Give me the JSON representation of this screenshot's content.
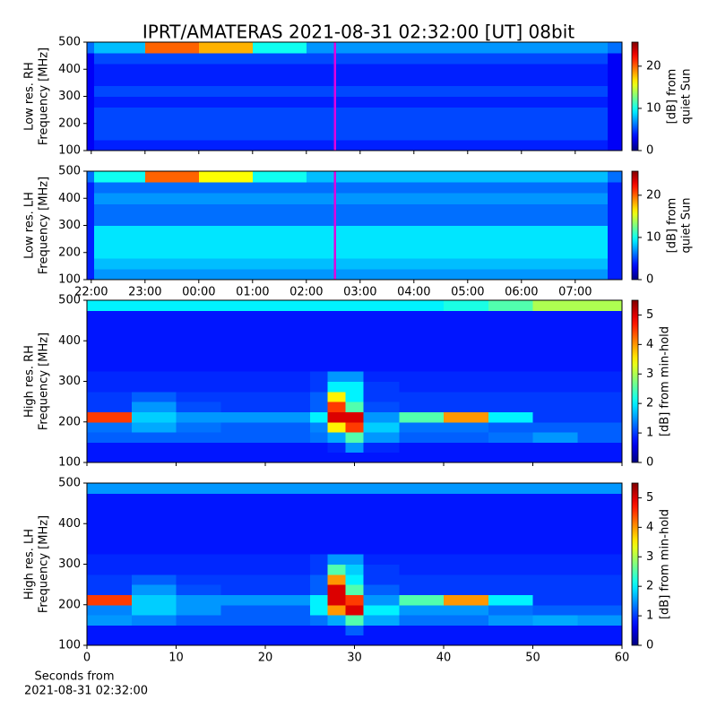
{
  "title": "IPRT/AMATERAS 2021-08-31 02:32:00 [UT]   08bit",
  "chart_data": [
    {
      "type": "heatmap",
      "colormap": "jet",
      "ylabel": [
        "Low res. RH",
        "Frequency [MHz]"
      ],
      "ylim": [
        100,
        500
      ],
      "yticks": [
        100,
        200,
        300,
        400,
        500
      ],
      "xlim": [
        21.92,
        31.87
      ],
      "xticks": [
        22,
        23,
        24,
        25,
        26,
        27,
        28,
        29,
        30,
        31
      ],
      "xtick_labels": false,
      "marker_x": 26.533,
      "marker_color": "#e000e0",
      "colorbar": {
        "label": [
          "[dB] from",
          "quiet Sun"
        ],
        "lim": [
          0,
          25.7
        ],
        "ticks": [
          0,
          10,
          20
        ]
      },
      "x_edges": [
        21.92,
        22.05,
        23,
        24,
        25,
        26,
        27,
        28,
        29,
        30,
        31.6,
        31.87
      ],
      "y_edges": [
        100,
        140,
        180,
        220,
        260,
        300,
        340,
        380,
        420,
        460,
        500
      ],
      "z": [
        [
          3,
          4,
          4,
          4,
          4,
          4,
          4,
          4,
          4,
          4,
          3
        ],
        [
          3,
          5,
          5,
          5,
          5,
          5,
          5,
          5,
          5,
          5,
          3
        ],
        [
          3,
          5,
          5,
          5,
          5,
          5,
          5,
          5,
          5,
          5,
          3
        ],
        [
          3,
          5,
          5,
          5,
          5,
          5,
          5,
          5,
          5,
          5,
          3
        ],
        [
          3,
          4,
          4,
          4,
          4,
          4,
          4,
          4,
          4,
          4,
          3
        ],
        [
          3,
          5,
          5,
          5,
          5,
          5,
          5,
          5,
          5,
          5,
          3
        ],
        [
          3,
          4,
          4,
          4,
          4,
          4,
          4,
          4,
          4,
          4,
          3
        ],
        [
          3,
          4,
          4,
          4,
          4,
          4,
          4,
          4,
          4,
          4,
          3
        ],
        [
          3,
          5,
          5,
          5,
          5,
          5,
          5,
          5,
          5,
          5,
          3
        ],
        [
          6,
          8,
          20,
          18,
          10,
          7,
          7,
          7,
          7,
          7,
          6
        ]
      ]
    },
    {
      "type": "heatmap",
      "colormap": "jet",
      "ylabel": [
        "Low res. LH",
        "Frequency [MHz]"
      ],
      "ylim": [
        100,
        500
      ],
      "yticks": [
        100,
        200,
        300,
        400,
        500
      ],
      "xlim": [
        21.92,
        31.87
      ],
      "xticks": [
        {
          "value": 22,
          "label": "22:00"
        },
        {
          "value": 23,
          "label": "23:00"
        },
        {
          "value": 24,
          "label": "00:00"
        },
        {
          "value": 25,
          "label": "01:00"
        },
        {
          "value": 26,
          "label": "02:00"
        },
        {
          "value": 27,
          "label": "03:00"
        },
        {
          "value": 28,
          "label": "04:00"
        },
        {
          "value": 29,
          "label": "05:00"
        },
        {
          "value": 30,
          "label": "06:00"
        },
        {
          "value": 31,
          "label": "07:00"
        }
      ],
      "xtick_labels": true,
      "marker_x": 26.533,
      "marker_color": "#e000e0",
      "colorbar": {
        "label": [
          "[dB] from",
          "quiet Sun"
        ],
        "lim": [
          0,
          25.7
        ],
        "ticks": [
          0,
          10,
          20
        ]
      },
      "x_edges": [
        21.92,
        22.05,
        23,
        24,
        25,
        26,
        27,
        28,
        29,
        30,
        31.6,
        31.87
      ],
      "y_edges": [
        100,
        140,
        180,
        220,
        260,
        300,
        340,
        380,
        420,
        460,
        500
      ],
      "z": [
        [
          4,
          7,
          7,
          7,
          7,
          7,
          7,
          7,
          7,
          7,
          4
        ],
        [
          4,
          8,
          8,
          8,
          8,
          8,
          8,
          8,
          8,
          8,
          4
        ],
        [
          4,
          9,
          9,
          9,
          9,
          9,
          9,
          9,
          9,
          9,
          4
        ],
        [
          4,
          9,
          9,
          9,
          9,
          9,
          9,
          9,
          9,
          9,
          4
        ],
        [
          4,
          9,
          9,
          9,
          9,
          9,
          9,
          9,
          9,
          9,
          4
        ],
        [
          4,
          6,
          6,
          6,
          6,
          6,
          6,
          6,
          6,
          6,
          4
        ],
        [
          4,
          6,
          6,
          6,
          6,
          6,
          6,
          6,
          6,
          6,
          4
        ],
        [
          4,
          7,
          7,
          7,
          7,
          7,
          7,
          7,
          7,
          7,
          4
        ],
        [
          4,
          6,
          6,
          6,
          6,
          6,
          6,
          6,
          6,
          6,
          4
        ],
        [
          6,
          10,
          20,
          16,
          10,
          8,
          8,
          8,
          8,
          8,
          6
        ]
      ]
    },
    {
      "type": "heatmap",
      "colormap": "jet",
      "ylabel": [
        "High res. RH",
        "Frequency [MHz]"
      ],
      "ylim": [
        100,
        500
      ],
      "yticks": [
        100,
        200,
        300,
        400,
        500
      ],
      "xlim": [
        0,
        60
      ],
      "xticks": [
        0,
        10,
        20,
        30,
        40,
        50,
        60
      ],
      "xtick_labels": false,
      "colorbar": {
        "label": [
          "[dB] from min-hold"
        ],
        "lim": [
          0,
          5.5
        ],
        "ticks": [
          0,
          1,
          2,
          3,
          4,
          5
        ]
      },
      "x_edges": [
        0,
        5,
        10,
        15,
        20,
        25,
        27,
        29,
        31,
        35,
        40,
        45,
        50,
        55,
        60
      ],
      "y_edges": [
        100,
        125,
        150,
        175,
        200,
        225,
        250,
        275,
        300,
        325,
        350,
        375,
        400,
        425,
        450,
        475,
        500
      ],
      "z": [
        [
          0.8,
          0.8,
          0.8,
          0.8,
          0.8,
          0.8,
          0.8,
          0.8,
          0.8,
          0.8,
          0.8,
          0.8,
          0.8,
          0.8
        ],
        [
          0.8,
          0.8,
          0.8,
          0.8,
          0.8,
          0.8,
          0.9,
          1.5,
          0.9,
          0.8,
          0.8,
          0.8,
          0.8,
          0.8
        ],
        [
          1.2,
          1.2,
          1.2,
          1.2,
          1.2,
          1.3,
          1.6,
          2.5,
          1.5,
          1.2,
          1.2,
          1.3,
          1.5,
          1.2
        ],
        [
          1.3,
          1.6,
          1.3,
          1.2,
          1.2,
          1.4,
          3.5,
          4.5,
          1.8,
          1.3,
          1.3,
          1.2,
          1.2,
          1.2
        ],
        [
          4.5,
          1.8,
          1.5,
          1.5,
          1.5,
          2.0,
          5.0,
          5.0,
          1.5,
          2.5,
          4.0,
          2.0,
          1.0,
          1.0
        ],
        [
          1.0,
          1.5,
          1.1,
          1.0,
          1.0,
          1.2,
          4.5,
          2.5,
          1.1,
          1.0,
          1.0,
          1.0,
          1.0,
          1.0
        ],
        [
          1.0,
          1.2,
          1.0,
          1.0,
          1.0,
          1.2,
          3.5,
          2.0,
          1.0,
          1.0,
          1.0,
          1.0,
          1.0,
          1.0
        ],
        [
          0.9,
          0.9,
          0.9,
          0.9,
          0.9,
          1.0,
          2.0,
          2.0,
          1.0,
          0.9,
          0.9,
          0.9,
          0.9,
          0.9
        ],
        [
          0.9,
          0.9,
          0.9,
          0.9,
          0.9,
          1.0,
          1.5,
          1.5,
          0.9,
          0.9,
          0.9,
          0.9,
          0.9,
          0.9
        ],
        [
          0.8,
          0.8,
          0.8,
          0.8,
          0.8,
          0.8,
          0.8,
          0.8,
          0.8,
          0.8,
          0.8,
          0.8,
          0.8,
          0.8
        ],
        [
          0.8,
          0.8,
          0.8,
          0.8,
          0.8,
          0.8,
          0.8,
          0.8,
          0.8,
          0.8,
          0.8,
          0.8,
          0.8,
          0.8
        ],
        [
          0.8,
          0.8,
          0.8,
          0.8,
          0.8,
          0.8,
          0.8,
          0.8,
          0.8,
          0.8,
          0.8,
          0.8,
          0.8,
          0.8
        ],
        [
          0.8,
          0.8,
          0.8,
          0.8,
          0.8,
          0.8,
          0.8,
          0.8,
          0.8,
          0.8,
          0.8,
          0.8,
          0.8,
          0.8
        ],
        [
          0.8,
          0.8,
          0.8,
          0.8,
          0.8,
          0.8,
          0.8,
          0.8,
          0.8,
          0.8,
          0.8,
          0.8,
          0.8,
          0.8
        ],
        [
          0.8,
          0.8,
          0.8,
          0.8,
          0.8,
          0.8,
          0.8,
          0.8,
          0.8,
          0.8,
          0.8,
          0.8,
          0.8,
          0.8
        ],
        [
          2.0,
          2.0,
          2.0,
          2.0,
          2.0,
          2.0,
          2.0,
          2.0,
          2.0,
          2.0,
          2.2,
          2.5,
          3.0,
          3.0
        ]
      ]
    },
    {
      "type": "heatmap",
      "colormap": "jet",
      "ylabel": [
        "High res. LH",
        "Frequency [MHz]"
      ],
      "ylim": [
        100,
        500
      ],
      "yticks": [
        100,
        200,
        300,
        400,
        500
      ],
      "xlim": [
        0,
        60
      ],
      "xticks": [
        0,
        10,
        20,
        30,
        40,
        50,
        60
      ],
      "xtick_labels": true,
      "xlabel": [
        "Seconds from",
        "2021-08-31 02:32:00"
      ],
      "colorbar": {
        "label": [
          "[dB] from min-hold"
        ],
        "lim": [
          0,
          5.5
        ],
        "ticks": [
          0,
          1,
          2,
          3,
          4,
          5
        ]
      },
      "x_edges": [
        0,
        5,
        10,
        15,
        20,
        25,
        27,
        29,
        31,
        35,
        40,
        45,
        50,
        55,
        60
      ],
      "y_edges": [
        100,
        125,
        150,
        175,
        200,
        225,
        250,
        275,
        300,
        325,
        350,
        375,
        400,
        425,
        450,
        475,
        500
      ],
      "z": [
        [
          0.8,
          0.8,
          0.8,
          0.8,
          0.8,
          0.8,
          0.8,
          0.8,
          0.8,
          0.8,
          0.8,
          0.8,
          0.8,
          0.8
        ],
        [
          0.8,
          0.8,
          0.8,
          0.8,
          0.8,
          0.8,
          0.8,
          1.2,
          0.8,
          0.8,
          0.8,
          0.8,
          0.8,
          0.8
        ],
        [
          1.5,
          1.4,
          1.2,
          1.2,
          1.2,
          1.3,
          1.6,
          2.5,
          1.6,
          1.3,
          1.3,
          1.5,
          1.6,
          1.5
        ],
        [
          1.4,
          1.8,
          1.5,
          1.2,
          1.2,
          2.0,
          4.0,
          5.0,
          2.0,
          1.5,
          1.5,
          1.3,
          1.2,
          1.2
        ],
        [
          4.5,
          1.8,
          1.5,
          1.5,
          1.5,
          2.0,
          5.0,
          4.5,
          1.5,
          2.5,
          4.0,
          2.0,
          1.0,
          1.0
        ],
        [
          1.0,
          1.5,
          1.1,
          1.0,
          1.0,
          1.2,
          5.0,
          2.5,
          1.2,
          1.0,
          1.0,
          1.0,
          1.0,
          1.0
        ],
        [
          1.0,
          1.2,
          1.0,
          1.0,
          1.0,
          1.2,
          4.0,
          2.0,
          1.0,
          1.0,
          1.0,
          1.0,
          1.0,
          1.0
        ],
        [
          0.9,
          0.9,
          0.9,
          0.9,
          0.9,
          1.0,
          2.5,
          1.8,
          1.0,
          0.9,
          0.9,
          0.9,
          0.9,
          0.9
        ],
        [
          0.9,
          0.9,
          0.9,
          0.9,
          0.9,
          1.0,
          1.5,
          1.5,
          0.9,
          0.9,
          0.9,
          0.9,
          0.9,
          0.9
        ],
        [
          0.8,
          0.8,
          0.8,
          0.8,
          0.8,
          0.8,
          0.8,
          0.8,
          0.8,
          0.8,
          0.8,
          0.8,
          0.8,
          0.8
        ],
        [
          0.8,
          0.8,
          0.8,
          0.8,
          0.8,
          0.8,
          0.8,
          0.8,
          0.8,
          0.8,
          0.8,
          0.8,
          0.8,
          0.8
        ],
        [
          0.8,
          0.8,
          0.8,
          0.8,
          0.8,
          0.8,
          0.8,
          0.8,
          0.8,
          0.8,
          0.8,
          0.8,
          0.8,
          0.8
        ],
        [
          0.8,
          0.8,
          0.8,
          0.8,
          0.8,
          0.8,
          0.8,
          0.8,
          0.8,
          0.8,
          0.8,
          0.8,
          0.8,
          0.8
        ],
        [
          0.8,
          0.8,
          0.8,
          0.8,
          0.8,
          0.8,
          0.8,
          0.8,
          0.8,
          0.8,
          0.8,
          0.8,
          0.8,
          0.8
        ],
        [
          0.8,
          0.8,
          0.8,
          0.8,
          0.8,
          0.8,
          0.8,
          0.8,
          0.8,
          0.8,
          0.8,
          0.8,
          0.8,
          0.8
        ],
        [
          1.5,
          1.5,
          1.5,
          1.5,
          1.5,
          1.5,
          1.5,
          1.5,
          1.5,
          1.5,
          1.5,
          1.5,
          1.5,
          1.5
        ]
      ]
    }
  ]
}
